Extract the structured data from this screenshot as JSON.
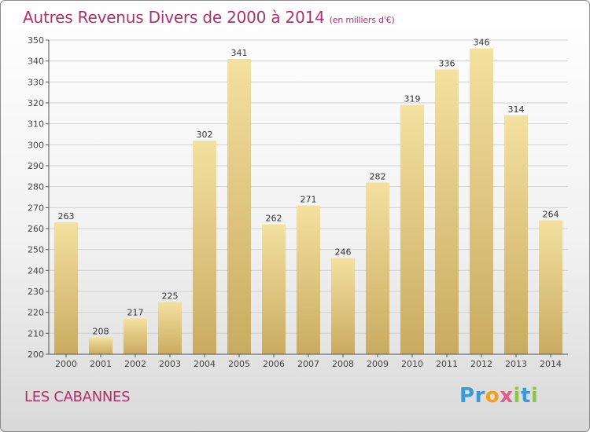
{
  "title": "Autres Revenus Divers de 2000 à 2014",
  "subtitle": "(en milliers d'€)",
  "place": "LES CABANNES",
  "logo": {
    "text": "Proxiti",
    "letters": [
      "P",
      "r",
      "o",
      "x",
      "i",
      "t",
      "i"
    ]
  },
  "colors": {
    "title": "#b0306a",
    "bar_top": "#f4e0a0",
    "bar_bottom": "#c9ab60"
  },
  "chart_data": {
    "type": "bar",
    "title": "Autres Revenus Divers de 2000 à 2014",
    "subtitle": "(en milliers d'€)",
    "xlabel": "",
    "ylabel": "",
    "categories": [
      "2000",
      "2001",
      "2002",
      "2003",
      "2004",
      "2005",
      "2006",
      "2007",
      "2008",
      "2009",
      "2010",
      "2011",
      "2012",
      "2013",
      "2014"
    ],
    "values": [
      263,
      208,
      217,
      225,
      302,
      341,
      262,
      271,
      246,
      282,
      319,
      336,
      346,
      314,
      264
    ],
    "ylim": [
      200,
      350
    ],
    "yticks": [
      200,
      210,
      220,
      230,
      240,
      250,
      260,
      270,
      280,
      290,
      300,
      310,
      320,
      330,
      340,
      350
    ],
    "grid": true,
    "legend": "none"
  }
}
